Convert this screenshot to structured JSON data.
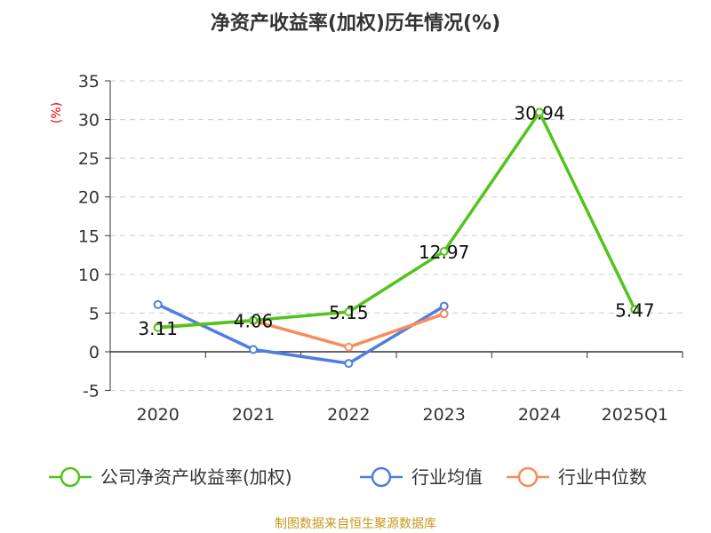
{
  "chart_data": {
    "type": "line",
    "title": "净资产收益率(加权)历年情况(%)",
    "ylabel": "(%)",
    "xlabel": "",
    "categories": [
      "2020",
      "2021",
      "2022",
      "2023",
      "2024",
      "2025Q1"
    ],
    "ylim": [
      -5,
      35
    ],
    "yticks": [
      -5,
      0,
      5,
      10,
      15,
      20,
      25,
      30,
      35
    ],
    "grid": true,
    "legend_position": "bottom",
    "series": [
      {
        "name": "公司净资产收益率(加权)",
        "color": "#52c41a",
        "values": [
          3.11,
          4.06,
          5.15,
          12.97,
          30.94,
          5.47
        ],
        "labels": [
          "3.11",
          "4.06",
          "5.15",
          "12.97",
          "30.94",
          "5.47"
        ]
      },
      {
        "name": "行业均值",
        "color": "#4e7fe0",
        "values": [
          6.1,
          0.3,
          -1.5,
          5.9,
          null,
          null
        ]
      },
      {
        "name": "行业中位数",
        "color": "#fa8c5a",
        "values": [
          3.2,
          4.0,
          0.6,
          4.9,
          null,
          null
        ]
      }
    ],
    "source": "制图数据来自恒生聚源数据库"
  }
}
